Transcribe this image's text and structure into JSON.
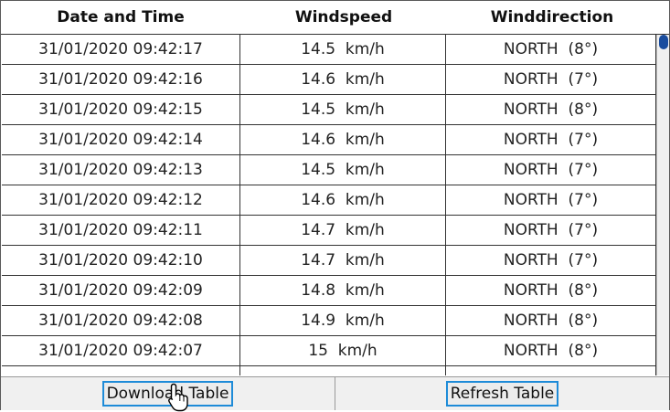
{
  "table": {
    "headers": [
      "Date and Time",
      "Windspeed",
      "Winddirection"
    ],
    "rows": [
      [
        "31/01/2020 09:42:17",
        "14.5  km/h",
        "NORTH  (8°)"
      ],
      [
        "31/01/2020 09:42:16",
        "14.6  km/h",
        "NORTH  (7°)"
      ],
      [
        "31/01/2020 09:42:15",
        "14.5  km/h",
        "NORTH  (8°)"
      ],
      [
        "31/01/2020 09:42:14",
        "14.6  km/h",
        "NORTH  (7°)"
      ],
      [
        "31/01/2020 09:42:13",
        "14.5  km/h",
        "NORTH  (7°)"
      ],
      [
        "31/01/2020 09:42:12",
        "14.6  km/h",
        "NORTH  (7°)"
      ],
      [
        "31/01/2020 09:42:11",
        "14.7  km/h",
        "NORTH  (7°)"
      ],
      [
        "31/01/2020 09:42:10",
        "14.7  km/h",
        "NORTH  (7°)"
      ],
      [
        "31/01/2020 09:42:09",
        "14.8  km/h",
        "NORTH  (8°)"
      ],
      [
        "31/01/2020 09:42:08",
        "14.9  km/h",
        "NORTH  (8°)"
      ],
      [
        "31/01/2020 09:42:07",
        "15  km/h",
        "NORTH  (8°)"
      ]
    ]
  },
  "footer": {
    "download_label": "Download Table",
    "refresh_label": "Refresh Table"
  },
  "colors": {
    "button_border": "#1e8bd8",
    "scroll_thumb": "#1a4d9e"
  },
  "icons": {
    "cursor": "hand-pointer-icon"
  }
}
